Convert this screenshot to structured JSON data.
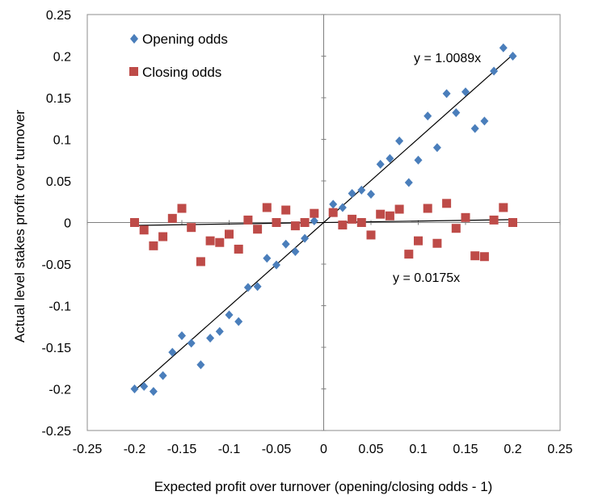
{
  "chart_data": {
    "type": "scatter",
    "xlabel": "Expected profit over turnover (opening/closing odds - 1)",
    "ylabel": "Actual level stakes profit over turnover",
    "xlim": [
      -0.25,
      0.25
    ],
    "ylim": [
      -0.25,
      0.25
    ],
    "x_ticks": [
      "-0.25",
      "-0.2",
      "-0.15",
      "-0.1",
      "-0.05",
      "0",
      "0.05",
      "0.1",
      "0.15",
      "0.2",
      "0.25"
    ],
    "y_ticks": [
      "0.25",
      "0.2",
      "0.15",
      "0.1",
      "0.05",
      "0",
      "-0.05",
      "-0.1",
      "-0.15",
      "-0.2",
      "-0.25"
    ],
    "legend_position": "top-left",
    "series": [
      {
        "name": "Opening odds",
        "marker": "diamond",
        "color": "#4A7EBB",
        "points": [
          [
            -0.2,
            -0.2
          ],
          [
            -0.19,
            -0.197
          ],
          [
            -0.18,
            -0.203
          ],
          [
            -0.17,
            -0.184
          ],
          [
            -0.16,
            -0.156
          ],
          [
            -0.15,
            -0.136
          ],
          [
            -0.14,
            -0.145
          ],
          [
            -0.13,
            -0.171
          ],
          [
            -0.12,
            -0.139
          ],
          [
            -0.11,
            -0.131
          ],
          [
            -0.1,
            -0.111
          ],
          [
            -0.09,
            -0.119
          ],
          [
            -0.08,
            -0.078
          ],
          [
            -0.07,
            -0.077
          ],
          [
            -0.06,
            -0.043
          ],
          [
            -0.05,
            -0.051
          ],
          [
            -0.04,
            -0.026
          ],
          [
            -0.03,
            -0.035
          ],
          [
            -0.02,
            -0.019
          ],
          [
            -0.01,
            0.002
          ],
          [
            0.01,
            0.022
          ],
          [
            0.02,
            0.018
          ],
          [
            0.03,
            0.035
          ],
          [
            0.04,
            0.039
          ],
          [
            0.05,
            0.034
          ],
          [
            0.06,
            0.07
          ],
          [
            0.07,
            0.077
          ],
          [
            0.08,
            0.098
          ],
          [
            0.09,
            0.048
          ],
          [
            0.1,
            0.075
          ],
          [
            0.11,
            0.128
          ],
          [
            0.12,
            0.09
          ],
          [
            0.13,
            0.155
          ],
          [
            0.14,
            0.132
          ],
          [
            0.15,
            0.157
          ],
          [
            0.16,
            0.113
          ],
          [
            0.17,
            0.122
          ],
          [
            0.18,
            0.182
          ],
          [
            0.19,
            0.21
          ],
          [
            0.2,
            0.2
          ]
        ],
        "trendline": {
          "slope": 1.0089,
          "label": "y = 1.0089x"
        }
      },
      {
        "name": "Closing odds",
        "marker": "square",
        "color": "#BE4B48",
        "points": [
          [
            -0.2,
            0.0
          ],
          [
            -0.19,
            -0.009
          ],
          [
            -0.18,
            -0.028
          ],
          [
            -0.17,
            -0.017
          ],
          [
            -0.16,
            0.005
          ],
          [
            -0.15,
            0.017
          ],
          [
            -0.14,
            -0.006
          ],
          [
            -0.13,
            -0.047
          ],
          [
            -0.12,
            -0.022
          ],
          [
            -0.11,
            -0.024
          ],
          [
            -0.1,
            -0.014
          ],
          [
            -0.09,
            -0.032
          ],
          [
            -0.08,
            0.003
          ],
          [
            -0.07,
            -0.008
          ],
          [
            -0.06,
            0.018
          ],
          [
            -0.05,
            0.0
          ],
          [
            -0.04,
            0.015
          ],
          [
            -0.03,
            -0.004
          ],
          [
            -0.02,
            0.0
          ],
          [
            -0.01,
            0.011
          ],
          [
            0.01,
            0.012
          ],
          [
            0.02,
            -0.003
          ],
          [
            0.03,
            0.004
          ],
          [
            0.04,
            0.0
          ],
          [
            0.05,
            -0.015
          ],
          [
            0.06,
            0.01
          ],
          [
            0.07,
            0.008
          ],
          [
            0.08,
            0.016
          ],
          [
            0.09,
            -0.038
          ],
          [
            0.1,
            -0.022
          ],
          [
            0.11,
            0.017
          ],
          [
            0.12,
            -0.025
          ],
          [
            0.13,
            0.023
          ],
          [
            0.14,
            -0.007
          ],
          [
            0.15,
            0.006
          ],
          [
            0.16,
            -0.04
          ],
          [
            0.17,
            -0.041
          ],
          [
            0.18,
            0.003
          ],
          [
            0.19,
            0.018
          ],
          [
            0.2,
            0.0
          ]
        ],
        "trendline": {
          "slope": 0.0175,
          "label": "y = 0.0175x"
        }
      }
    ]
  }
}
